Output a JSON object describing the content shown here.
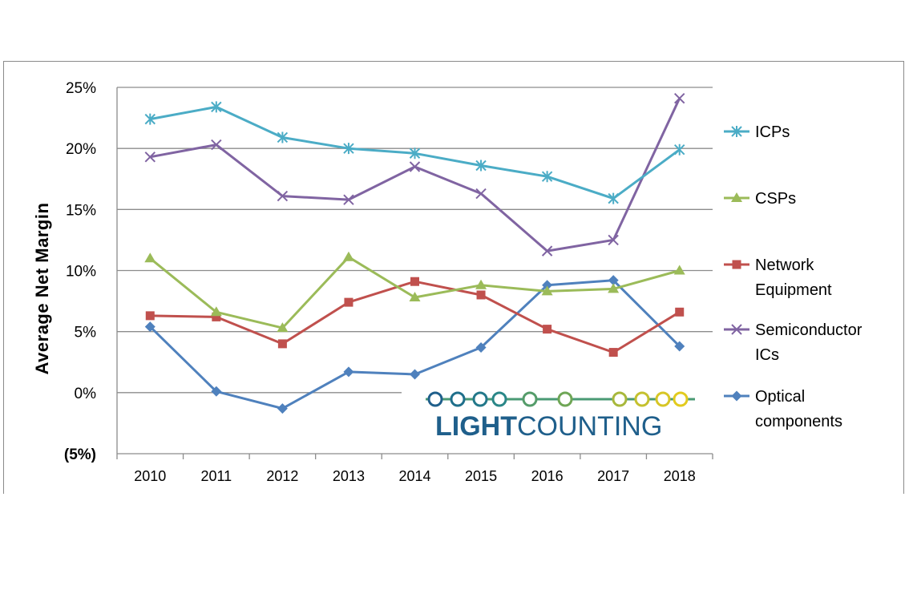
{
  "chart_data": {
    "type": "line",
    "ylabel": "Average  Net  Margin",
    "x": [
      "2010",
      "2011",
      "2012",
      "2013",
      "2014",
      "2015",
      "2016",
      "2017",
      "2018"
    ],
    "ylim": [
      -5,
      25
    ],
    "yticks": [
      {
        "value": 25,
        "label": "25%",
        "color": "#000000"
      },
      {
        "value": 20,
        "label": "20%",
        "color": "#000000"
      },
      {
        "value": 15,
        "label": "15%",
        "color": "#000000"
      },
      {
        "value": 10,
        "label": "10%",
        "color": "#000000"
      },
      {
        "value": 5,
        "label": "5%",
        "color": "#000000"
      },
      {
        "value": 0,
        "label": "0%",
        "color": "#000000"
      },
      {
        "value": -5,
        "label": "(5%)",
        "color": "#e0201b"
      }
    ],
    "grid": true,
    "legend_position": "right",
    "series": [
      {
        "name": "ICPs",
        "name_lines": [
          "ICPs"
        ],
        "marker": "asterisk",
        "color": "#4bacc6",
        "values": [
          22.4,
          23.4,
          20.9,
          20.0,
          19.6,
          18.6,
          17.7,
          15.9,
          19.9
        ]
      },
      {
        "name": "CSPs",
        "name_lines": [
          "CSPs"
        ],
        "marker": "triangle",
        "color": "#9bbb59",
        "values": [
          11.0,
          6.6,
          5.3,
          11.1,
          7.8,
          8.8,
          8.3,
          8.5,
          10.0
        ]
      },
      {
        "name": "Network Equipment",
        "name_lines": [
          "Network",
          "Equipment"
        ],
        "marker": "square",
        "color": "#c0504d",
        "values": [
          6.3,
          6.2,
          4.0,
          7.4,
          9.1,
          8.0,
          5.2,
          3.3,
          6.6
        ]
      },
      {
        "name": "Semiconductor ICs",
        "name_lines": [
          "Semiconductor",
          "ICs"
        ],
        "marker": "x",
        "color": "#8064a2",
        "values": [
          19.3,
          20.3,
          16.1,
          15.8,
          18.5,
          16.3,
          11.6,
          12.5,
          24.1
        ]
      },
      {
        "name": "Optical components",
        "name_lines": [
          "Optical",
          "components"
        ],
        "marker": "diamond",
        "color": "#4f81bd",
        "values": [
          5.4,
          0.1,
          -1.3,
          1.7,
          1.5,
          3.7,
          8.8,
          9.2,
          3.8
        ]
      }
    ]
  },
  "logo": {
    "text_light": "LIGHT",
    "text_counting": "COUNTING",
    "text_color": "#1f5f8b"
  }
}
